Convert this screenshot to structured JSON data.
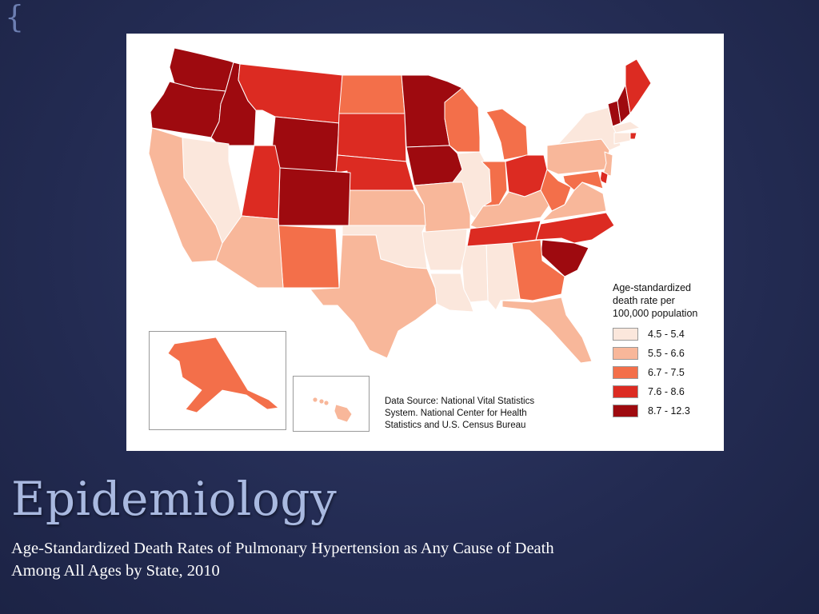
{
  "slide": {
    "brace_glyph": "{",
    "title": "Epidemiology",
    "subtitle": "Age-Standardized Death Rates of Pulmonary Hypertension as Any Cause of Death\nAmong All Ages by State, 2010"
  },
  "map": {
    "legend": {
      "title": "Age-standardized\ndeath rate per\n100,000 population",
      "bins": [
        {
          "label": "4.5 - 5.4",
          "color": "#fbe7dc"
        },
        {
          "label": "5.5 - 6.6",
          "color": "#f8b79a"
        },
        {
          "label": "6.7 - 7.5",
          "color": "#f36f4a"
        },
        {
          "label": "7.6 - 8.6",
          "color": "#dc2b22"
        },
        {
          "label": "8.7 - 12.3",
          "color": "#9e0a0f"
        }
      ]
    },
    "data_source": "Data Source: National Vital Statistics\nSystem. National Center for Health\nStatistics and U.S. Census Bureau",
    "state_bins": {
      "WA": 4,
      "OR": 4,
      "ID": 4,
      "MT": 3,
      "WY": 4,
      "ND": 2,
      "SD": 3,
      "NE": 3,
      "MN": 4,
      "IA": 4,
      "WI": 2,
      "MI": 2,
      "IL": 0,
      "IN": 2,
      "OH": 3,
      "WV": 2,
      "PA": 1,
      "NY": 0,
      "VT": 4,
      "NH": 4,
      "ME": 3,
      "MA": 0,
      "CT": 0,
      "RI": 3,
      "NJ": 1,
      "DE": 3,
      "MD": 2,
      "VA": 1,
      "NC": 3,
      "SC": 4,
      "GA": 2,
      "FL": 1,
      "AL": 0,
      "MS": 0,
      "TN": 3,
      "KY": 1,
      "AR": 0,
      "LA": 0,
      "MO": 1,
      "KS": 1,
      "OK": 0,
      "TX": 1,
      "NM": 2,
      "AZ": 1,
      "CO": 4,
      "UT": 3,
      "NV": 0,
      "CA": 1,
      "AK": 2,
      "HI": 1
    }
  }
}
